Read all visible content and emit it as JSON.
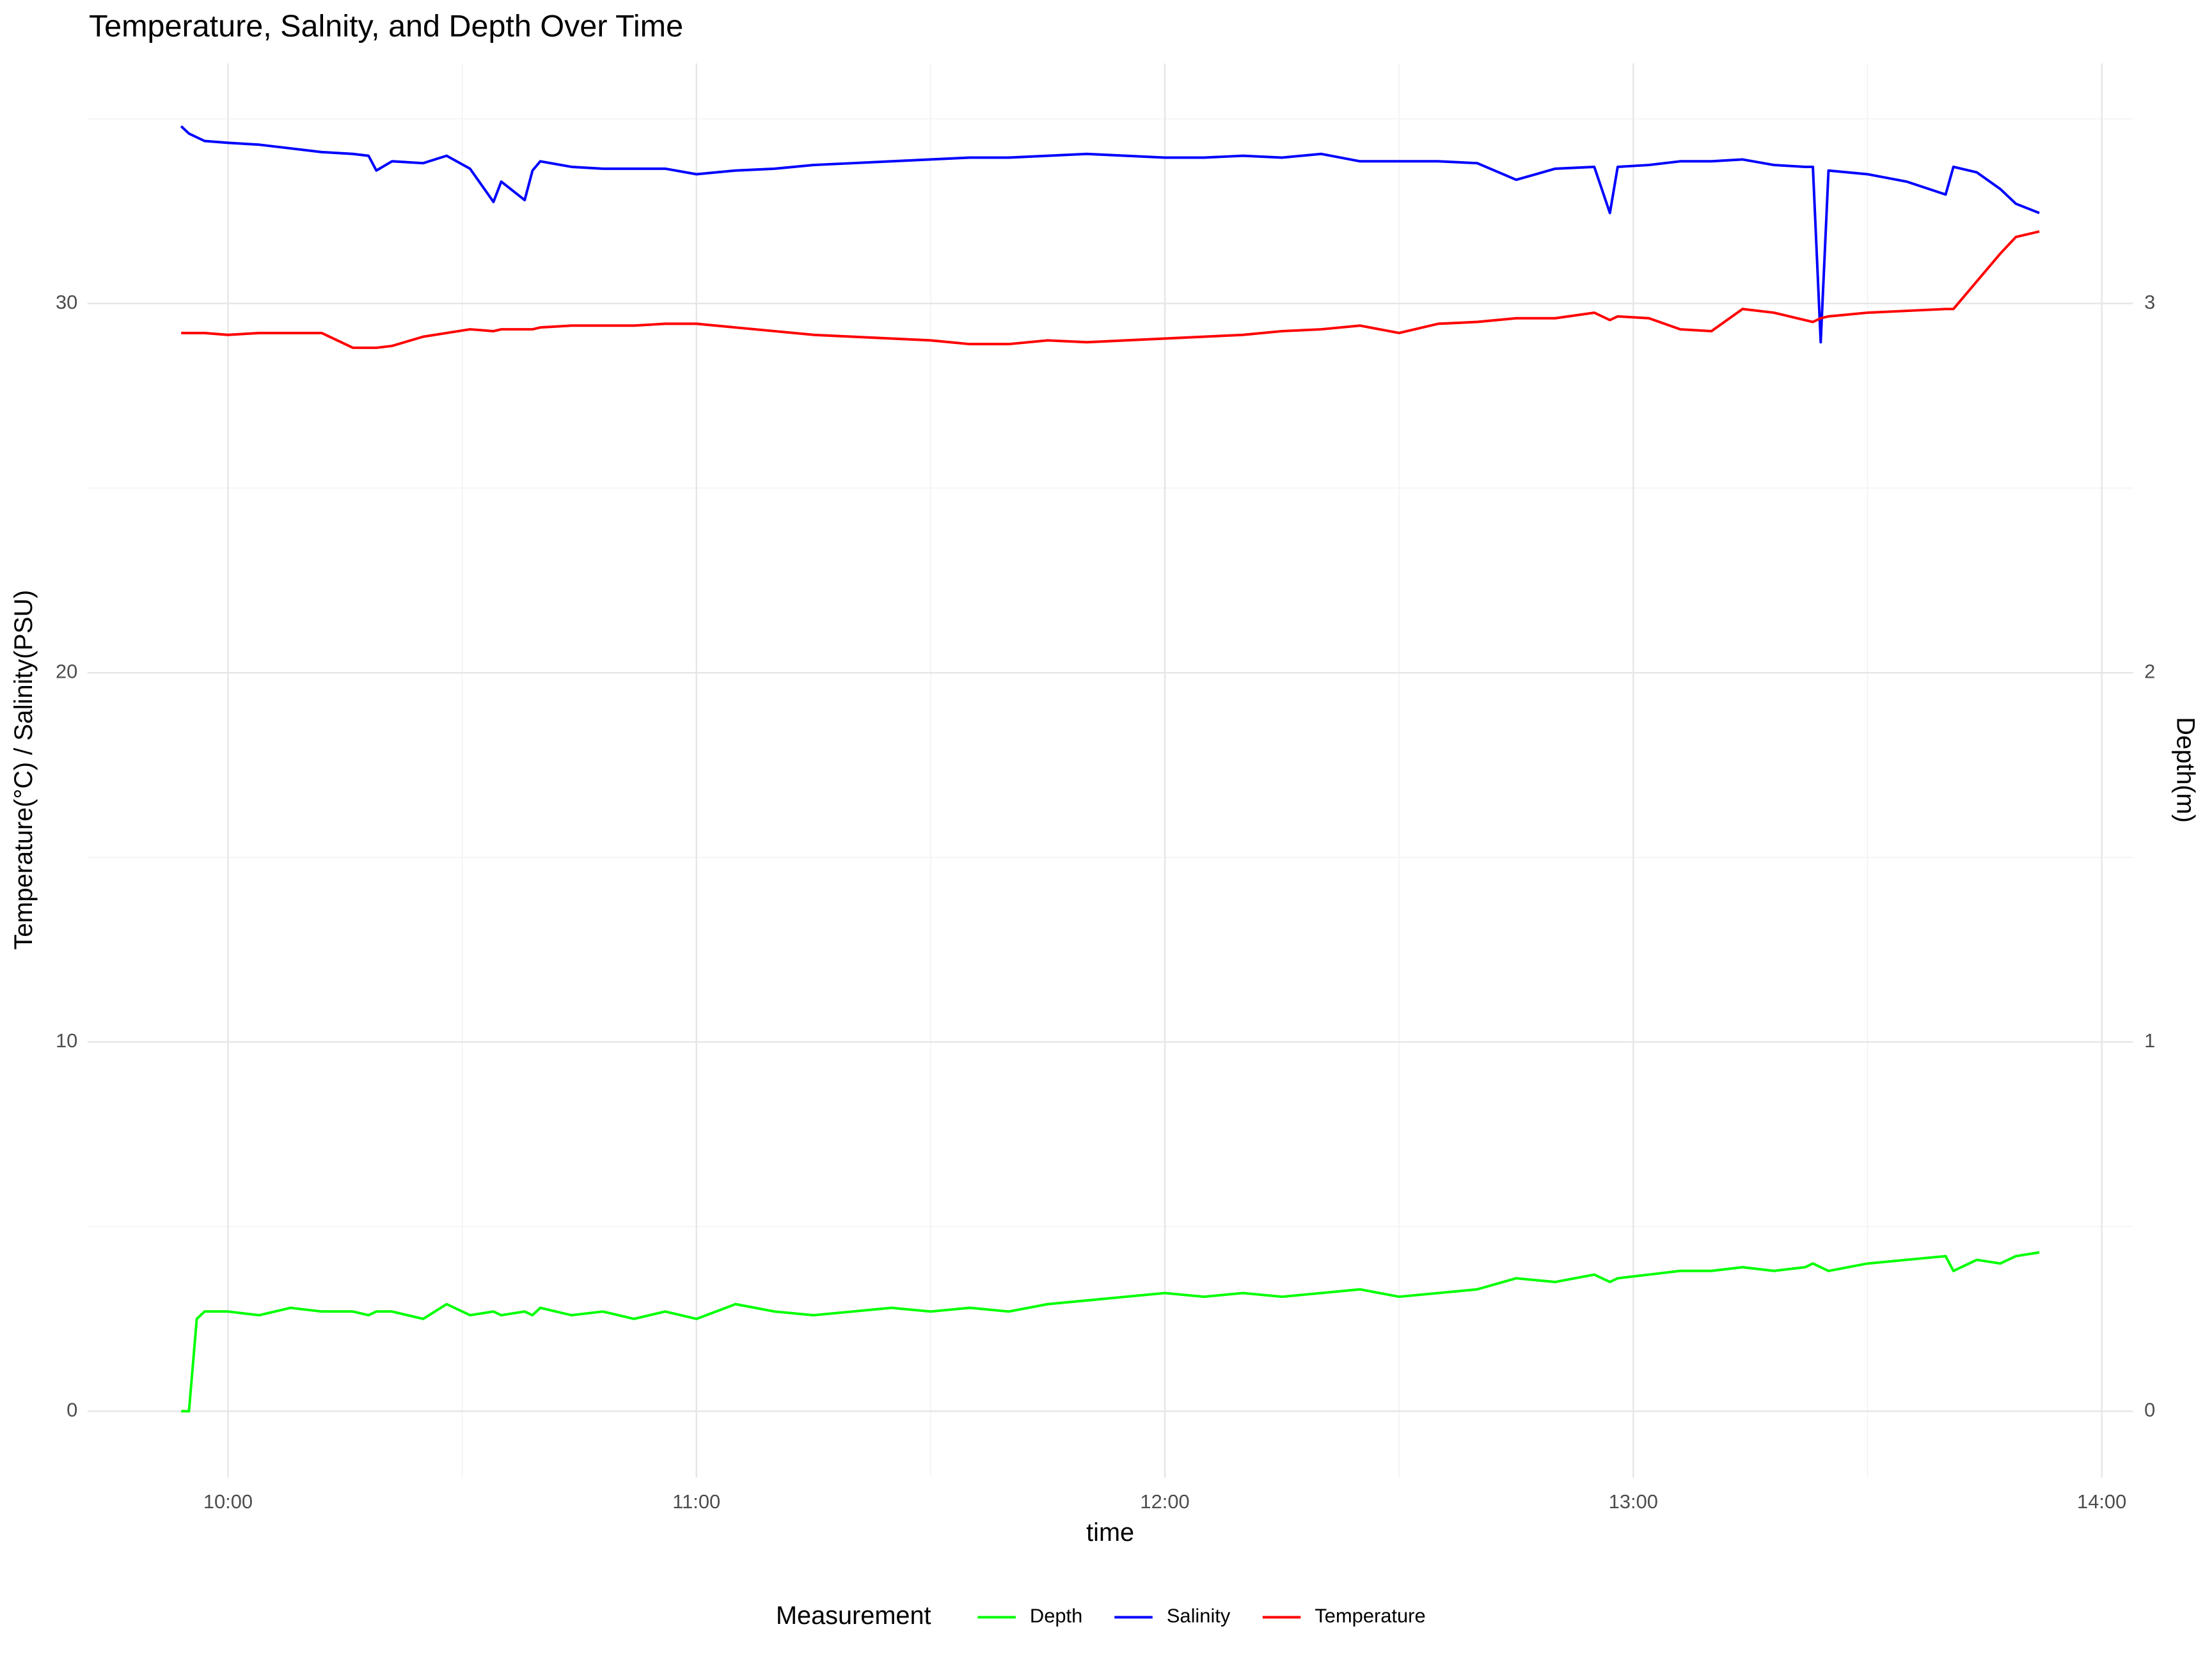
{
  "chart_data": {
    "type": "line",
    "title": "Temperature, Salnity, and Depth Over Time",
    "x_label": "time",
    "y_label": "Temperature(°C) / Salinity(PSU)",
    "y2_label": "Depth(m)",
    "legend_title": "Measurement",
    "legend_position": "bottom",
    "grid": true,
    "x": [
      "09:54",
      "09:55",
      "09:56",
      "09:57",
      "10:00",
      "10:04",
      "10:08",
      "10:12",
      "10:16",
      "10:18",
      "10:19",
      "10:21",
      "10:25",
      "10:28",
      "10:31",
      "10:34",
      "10:35",
      "10:38",
      "10:39",
      "10:40",
      "10:44",
      "10:48",
      "10:52",
      "10:56",
      "11:00",
      "11:05",
      "11:10",
      "11:15",
      "11:20",
      "11:25",
      "11:30",
      "11:35",
      "11:40",
      "11:45",
      "11:50",
      "11:55",
      "12:00",
      "12:05",
      "12:10",
      "12:15",
      "12:20",
      "12:25",
      "12:30",
      "12:35",
      "12:40",
      "12:45",
      "12:50",
      "12:55",
      "12:57",
      "12:58",
      "13:02",
      "13:06",
      "13:10",
      "13:14",
      "13:18",
      "13:22",
      "13:23",
      "13:24",
      "13:25",
      "13:30",
      "13:35",
      "13:40",
      "13:41",
      "13:44",
      "13:47",
      "13:49",
      "13:52"
    ],
    "series": [
      {
        "name": "Depth",
        "color": "#00ff00",
        "axis": "y2",
        "values": [
          0,
          0,
          0.25,
          0.27,
          0.27,
          0.26,
          0.28,
          0.27,
          0.27,
          0.26,
          0.27,
          0.27,
          0.25,
          0.29,
          0.26,
          0.27,
          0.26,
          0.27,
          0.26,
          0.28,
          0.26,
          0.27,
          0.25,
          0.27,
          0.25,
          0.29,
          0.27,
          0.26,
          0.27,
          0.28,
          0.27,
          0.28,
          0.27,
          0.29,
          0.3,
          0.31,
          0.32,
          0.31,
          0.32,
          0.31,
          0.32,
          0.33,
          0.31,
          0.32,
          0.33,
          0.36,
          0.35,
          0.37,
          0.35,
          0.36,
          0.37,
          0.38,
          0.38,
          0.39,
          0.38,
          0.39,
          0.4,
          0.39,
          0.38,
          0.4,
          0.41,
          0.42,
          0.38,
          0.41,
          0.4,
          0.42,
          0.43
        ]
      },
      {
        "name": "Salinity",
        "color": "#0000ff",
        "values": [
          34.8,
          34.6,
          34.5,
          34.4,
          34.35,
          34.3,
          34.2,
          34.1,
          34.05,
          34.0,
          33.6,
          33.85,
          33.8,
          34.0,
          33.65,
          32.75,
          33.3,
          32.8,
          33.6,
          33.85,
          33.7,
          33.65,
          33.65,
          33.65,
          33.5,
          33.6,
          33.65,
          33.75,
          33.8,
          33.85,
          33.9,
          33.95,
          33.95,
          34.0,
          34.05,
          34.0,
          33.95,
          33.95,
          34.0,
          33.95,
          34.05,
          33.85,
          33.85,
          33.85,
          33.8,
          33.35,
          33.65,
          33.7,
          32.45,
          33.7,
          33.75,
          33.85,
          33.85,
          33.9,
          33.75,
          33.7,
          33.7,
          28.95,
          33.6,
          33.5,
          33.3,
          32.95,
          33.7,
          33.55,
          33.1,
          32.7,
          32.45
        ]
      },
      {
        "name": "Temperature",
        "color": "#ff0000",
        "values": [
          29.2,
          29.2,
          29.2,
          29.2,
          29.15,
          29.2,
          29.2,
          29.2,
          28.8,
          28.8,
          28.8,
          28.85,
          29.1,
          29.2,
          29.3,
          29.25,
          29.3,
          29.3,
          29.3,
          29.35,
          29.4,
          29.4,
          29.4,
          29.45,
          29.45,
          29.35,
          29.25,
          29.15,
          29.1,
          29.05,
          29.0,
          28.9,
          28.9,
          29.0,
          28.95,
          29.0,
          29.05,
          29.1,
          29.15,
          29.25,
          29.3,
          29.4,
          29.2,
          29.45,
          29.5,
          29.6,
          29.6,
          29.75,
          29.55,
          29.65,
          29.6,
          29.3,
          29.25,
          29.85,
          29.75,
          29.55,
          29.5,
          29.6,
          29.65,
          29.75,
          29.8,
          29.85,
          29.85,
          30.6,
          31.35,
          31.8,
          31.95
        ]
      }
    ],
    "xlim": [
      "09:42",
      "14:04"
    ],
    "xticks": [
      "10:00",
      "11:00",
      "12:00",
      "13:00",
      "14:00"
    ],
    "ylim": [
      -1.8,
      36.5
    ],
    "yticks": [
      0,
      10,
      20,
      30
    ],
    "y2lim": [
      -0.18,
      3.65
    ],
    "y2ticks": [
      0,
      1,
      2,
      3
    ]
  }
}
